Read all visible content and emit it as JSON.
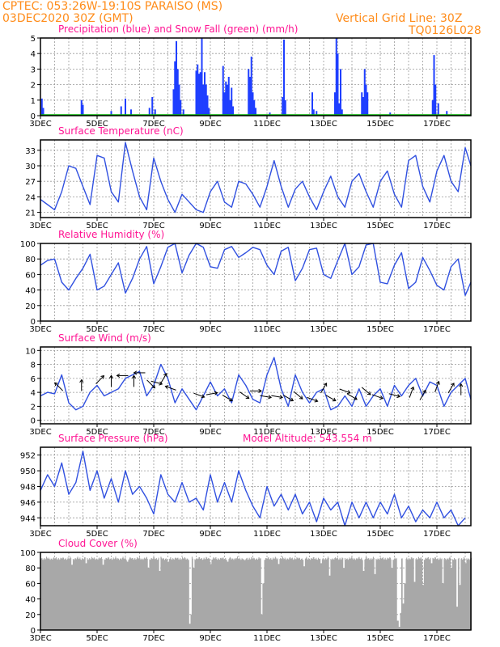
{
  "header": {
    "station_line": "CPTEC:   053:26W-19:10S   PARAISO (MS)",
    "date_line": "03DEC2020 30Z (GMT)",
    "grid_note": "Vertical Grid Line: 30Z",
    "model_code": "TQ0126L028"
  },
  "colors": {
    "header": "#ff8c1a",
    "panel_title": "#ff1493",
    "precip": "#1f3fff",
    "snow": "#00b000",
    "line": "#3050e0",
    "wind_arrow": "#000000",
    "cloud": "#a8a8a8",
    "grid": "#9a9a9a"
  },
  "x_ticks": [
    "3DEC",
    "5DEC",
    "7DEC",
    "9DEC",
    "11DEC",
    "13DEC",
    "15DEC",
    "17DEC"
  ],
  "chart_data": [
    {
      "type": "bar",
      "name": "precipitation",
      "title": "Precipitation (blue) and Snow Fall (green) (mm/h)",
      "ylim": [
        0,
        5
      ],
      "yticks": [
        "0",
        "1",
        "2",
        "3",
        "4",
        "5"
      ],
      "day_range": [
        3,
        18.2
      ],
      "series": [
        {
          "name": "Precipitation",
          "points": [
            [
              3.05,
              1.1
            ],
            [
              3.1,
              0.5
            ],
            [
              4.45,
              1.0
            ],
            [
              4.5,
              0.7
            ],
            [
              5.5,
              0.3
            ],
            [
              5.85,
              0.6
            ],
            [
              6.0,
              1.1
            ],
            [
              6.2,
              0.4
            ],
            [
              6.85,
              0.5
            ],
            [
              6.95,
              1.2
            ],
            [
              7.05,
              0.4
            ],
            [
              7.7,
              1.7
            ],
            [
              7.75,
              3.5
            ],
            [
              7.8,
              4.8
            ],
            [
              7.85,
              3.0
            ],
            [
              7.9,
              2.0
            ],
            [
              7.95,
              1.0
            ],
            [
              8.05,
              0.4
            ],
            [
              8.5,
              2.9
            ],
            [
              8.55,
              3.3
            ],
            [
              8.6,
              2.7
            ],
            [
              8.65,
              2.8
            ],
            [
              8.7,
              5.0
            ],
            [
              8.75,
              2.0
            ],
            [
              8.8,
              2.8
            ],
            [
              8.85,
              2.0
            ],
            [
              8.9,
              1.3
            ],
            [
              8.95,
              0.5
            ],
            [
              9.45,
              3.2
            ],
            [
              9.5,
              1.5
            ],
            [
              9.55,
              2.2
            ],
            [
              9.6,
              2.0
            ],
            [
              9.65,
              2.5
            ],
            [
              9.7,
              1.0
            ],
            [
              9.75,
              1.8
            ],
            [
              9.8,
              0.6
            ],
            [
              10.35,
              3.0
            ],
            [
              10.4,
              2.5
            ],
            [
              10.45,
              3.8
            ],
            [
              10.5,
              1.5
            ],
            [
              10.55,
              1.0
            ],
            [
              10.6,
              0.5
            ],
            [
              11.1,
              0.2
            ],
            [
              11.55,
              1.2
            ],
            [
              11.6,
              4.9
            ],
            [
              11.65,
              1.0
            ],
            [
              12.6,
              1.5
            ],
            [
              12.65,
              0.4
            ],
            [
              12.75,
              0.3
            ],
            [
              13.4,
              1.5
            ],
            [
              13.45,
              5.0
            ],
            [
              13.5,
              4.0
            ],
            [
              13.55,
              0.8
            ],
            [
              13.6,
              3.0
            ],
            [
              13.65,
              0.4
            ],
            [
              14.35,
              1.5
            ],
            [
              14.4,
              1.2
            ],
            [
              14.45,
              3.0
            ],
            [
              14.5,
              2.0
            ],
            [
              14.55,
              1.5
            ],
            [
              15.35,
              0.2
            ],
            [
              16.85,
              1.0
            ],
            [
              16.9,
              3.9
            ],
            [
              16.95,
              2.0
            ],
            [
              17.05,
              0.8
            ],
            [
              17.35,
              0.3
            ]
          ]
        },
        {
          "name": "Snow Fall",
          "values": []
        }
      ]
    },
    {
      "type": "line",
      "name": "temperature",
      "title": "Surface Temperature (nC)",
      "ylim": [
        20,
        35
      ],
      "yticks": [
        "21",
        "24",
        "27",
        "30",
        "33"
      ],
      "x_day": [
        3.0,
        3.25,
        3.5,
        3.75,
        4.0,
        4.25,
        4.5,
        4.75,
        5.0,
        5.25,
        5.5,
        5.75,
        6.0,
        6.25,
        6.5,
        6.75,
        7.0,
        7.25,
        7.5,
        7.75,
        8.0,
        8.25,
        8.5,
        8.75,
        9.0,
        9.25,
        9.5,
        9.75,
        10.0,
        10.25,
        10.5,
        10.75,
        11.0,
        11.25,
        11.5,
        11.75,
        12.0,
        12.25,
        12.5,
        12.75,
        13.0,
        13.25,
        13.5,
        13.75,
        14.0,
        14.25,
        14.5,
        14.75,
        15.0,
        15.25,
        15.5,
        15.75,
        16.0,
        16.25,
        16.5,
        16.75,
        17.0,
        17.25,
        17.5,
        17.75,
        18.0,
        18.2
      ],
      "values": [
        23.5,
        22.5,
        21.5,
        25,
        30,
        29.5,
        26,
        22.5,
        32,
        31.5,
        25,
        23,
        34.5,
        29,
        24,
        21.5,
        31.5,
        27,
        23.5,
        21,
        24.5,
        23,
        21.5,
        21,
        25,
        27,
        23,
        22,
        27,
        26.5,
        24.5,
        22,
        26,
        31,
        26,
        22,
        25.5,
        27,
        24,
        21.5,
        25,
        28,
        24,
        22,
        27,
        28.5,
        25,
        22,
        27,
        29,
        24.5,
        22,
        31,
        32,
        26,
        23,
        29,
        32,
        27,
        25,
        33.5,
        30
      ]
    },
    {
      "type": "line",
      "name": "humidity",
      "title": "Relative Humidity (%)",
      "ylim": [
        0,
        100
      ],
      "yticks": [
        "0",
        "20",
        "40",
        "60",
        "80",
        "100"
      ],
      "x_day": [
        3.0,
        3.25,
        3.5,
        3.75,
        4.0,
        4.25,
        4.5,
        4.75,
        5.0,
        5.25,
        5.5,
        5.75,
        6.0,
        6.25,
        6.5,
        6.75,
        7.0,
        7.25,
        7.5,
        7.75,
        8.0,
        8.25,
        8.5,
        8.75,
        9.0,
        9.25,
        9.5,
        9.75,
        10.0,
        10.25,
        10.5,
        10.75,
        11.0,
        11.25,
        11.5,
        11.75,
        12.0,
        12.25,
        12.5,
        12.75,
        13.0,
        13.25,
        13.5,
        13.75,
        14.0,
        14.25,
        14.5,
        14.75,
        15.0,
        15.25,
        15.5,
        15.75,
        16.0,
        16.25,
        16.5,
        16.75,
        17.0,
        17.25,
        17.5,
        17.75,
        18.0,
        18.2
      ],
      "values": [
        72,
        78,
        80,
        50,
        40,
        55,
        68,
        86,
        40,
        45,
        60,
        75,
        36,
        55,
        80,
        96,
        48,
        70,
        95,
        100,
        62,
        85,
        100,
        95,
        70,
        68,
        92,
        96,
        82,
        88,
        95,
        92,
        72,
        60,
        90,
        95,
        52,
        68,
        92,
        94,
        60,
        55,
        78,
        100,
        60,
        70,
        98,
        100,
        50,
        48,
        72,
        88,
        42,
        50,
        82,
        65,
        46,
        40,
        70,
        80,
        33,
        50
      ]
    },
    {
      "type": "line",
      "name": "wind",
      "title": "Surface Wind (m/s)",
      "ylim": [
        -0.5,
        10.5
      ],
      "yticks": [
        "0",
        "2",
        "4",
        "6",
        "8",
        "10"
      ],
      "x_day": [
        3.0,
        3.25,
        3.5,
        3.75,
        4.0,
        4.25,
        4.5,
        4.75,
        5.0,
        5.25,
        5.5,
        5.75,
        6.0,
        6.25,
        6.5,
        6.75,
        7.0,
        7.25,
        7.5,
        7.75,
        8.0,
        8.25,
        8.5,
        8.75,
        9.0,
        9.25,
        9.5,
        9.75,
        10.0,
        10.25,
        10.5,
        10.75,
        11.0,
        11.25,
        11.5,
        11.75,
        12.0,
        12.25,
        12.5,
        12.75,
        13.0,
        13.25,
        13.5,
        13.75,
        14.0,
        14.25,
        14.5,
        14.75,
        15.0,
        15.25,
        15.5,
        15.75,
        16.0,
        16.25,
        16.5,
        16.75,
        17.0,
        17.25,
        17.5,
        17.75,
        18.0,
        18.2
      ],
      "values": [
        3.5,
        4.0,
        3.8,
        6.5,
        2.5,
        1.5,
        2.0,
        4.0,
        5.0,
        3.5,
        4.0,
        4.5,
        6.0,
        6.5,
        7.0,
        3.5,
        5.0,
        8.0,
        6.0,
        2.5,
        4.5,
        3.0,
        1.5,
        3.5,
        5.5,
        3.5,
        4.5,
        2.5,
        6.5,
        5.0,
        3.0,
        2.5,
        6.5,
        9.0,
        4.5,
        2.0,
        6.5,
        4.0,
        2.5,
        4.0,
        4.5,
        1.5,
        2.0,
        3.5,
        2.0,
        4.5,
        2.0,
        3.5,
        4.5,
        2.0,
        5.0,
        3.5,
        5.0,
        6.0,
        3.5,
        5.5,
        5.0,
        2.0,
        4.0,
        5.0,
        6.0,
        3.0
      ],
      "arrows": [
        [
          3.65,
          4.8,
          225
        ],
        [
          4.45,
          5.0,
          270
        ],
        [
          5.1,
          5.8,
          315
        ],
        [
          5.5,
          5.6,
          270
        ],
        [
          5.9,
          6.4,
          180
        ],
        [
          6.3,
          5.6,
          270
        ],
        [
          6.5,
          6.8,
          180
        ],
        [
          6.9,
          5.2,
          45
        ],
        [
          7.1,
          5.4,
          15
        ],
        [
          7.35,
          6.0,
          300
        ],
        [
          7.6,
          4.6,
          200
        ],
        [
          8.6,
          3.6,
          20
        ],
        [
          9.05,
          3.8,
          350
        ],
        [
          9.6,
          3.2,
          30
        ],
        [
          10.2,
          3.6,
          35
        ],
        [
          10.6,
          4.2,
          0
        ],
        [
          10.95,
          3.4,
          10
        ],
        [
          11.35,
          3.4,
          10
        ],
        [
          11.75,
          3.2,
          30
        ],
        [
          12.1,
          3.6,
          40
        ],
        [
          12.6,
          3.0,
          20
        ],
        [
          13.0,
          4.6,
          300
        ],
        [
          13.25,
          3.2,
          30
        ],
        [
          13.75,
          4.2,
          20
        ],
        [
          14.0,
          3.4,
          30
        ],
        [
          14.5,
          4.2,
          40
        ],
        [
          14.9,
          3.4,
          20
        ],
        [
          15.5,
          3.6,
          15
        ],
        [
          16.1,
          4.0,
          290
        ],
        [
          16.5,
          3.6,
          300
        ],
        [
          17.0,
          4.8,
          290
        ],
        [
          17.5,
          4.6,
          300
        ],
        [
          17.85,
          4.4,
          270
        ]
      ]
    },
    {
      "type": "line",
      "name": "pressure",
      "title": "Surface Pressure (hPa)",
      "annotation": "Model Altitude: 543.554 m",
      "ylim": [
        943,
        953
      ],
      "yticks": [
        "944",
        "946",
        "948",
        "950",
        "952"
      ],
      "x_day": [
        3.0,
        3.25,
        3.5,
        3.75,
        4.0,
        4.25,
        4.5,
        4.75,
        5.0,
        5.25,
        5.5,
        5.75,
        6.0,
        6.25,
        6.5,
        6.75,
        7.0,
        7.25,
        7.5,
        7.75,
        8.0,
        8.25,
        8.5,
        8.75,
        9.0,
        9.25,
        9.5,
        9.75,
        10.0,
        10.25,
        10.5,
        10.75,
        11.0,
        11.25,
        11.5,
        11.75,
        12.0,
        12.25,
        12.5,
        12.75,
        13.0,
        13.25,
        13.5,
        13.75,
        14.0,
        14.25,
        14.5,
        14.75,
        15.0,
        15.25,
        15.5,
        15.75,
        16.0,
        16.25,
        16.5,
        16.75,
        17.0,
        17.25,
        17.5,
        17.75,
        18.0
      ],
      "values": [
        947.5,
        949.5,
        948,
        951,
        947,
        948.5,
        952.5,
        947.5,
        950,
        946.5,
        949,
        946,
        950,
        947,
        948,
        946.5,
        944.5,
        949.5,
        947,
        946,
        948.5,
        946,
        946.5,
        945,
        949.5,
        946,
        948.5,
        946,
        950,
        947.5,
        945.5,
        944,
        948,
        945.5,
        947,
        945,
        947,
        944.5,
        946,
        943.5,
        946.5,
        945,
        946,
        943,
        946,
        944,
        946,
        944,
        946,
        944.5,
        947,
        944,
        945.5,
        943.5,
        945,
        944,
        946,
        944,
        945,
        942.5,
        944
      ]
    },
    {
      "type": "bar",
      "name": "cloud",
      "title": "Cloud Cover (%)",
      "ylim": [
        0,
        100
      ],
      "yticks": [
        "0",
        "20",
        "40",
        "60",
        "80",
        "100"
      ],
      "base": 95,
      "dips": [
        [
          4.1,
          84
        ],
        [
          4.6,
          86
        ],
        [
          5.2,
          84
        ],
        [
          6.05,
          88
        ],
        [
          6.8,
          80
        ],
        [
          7.2,
          76
        ],
        [
          7.5,
          88
        ],
        [
          8.25,
          8
        ],
        [
          8.3,
          20
        ],
        [
          8.4,
          80
        ],
        [
          9.0,
          85
        ],
        [
          9.6,
          88
        ],
        [
          10.2,
          90
        ],
        [
          10.8,
          20
        ],
        [
          10.85,
          60
        ],
        [
          11.4,
          85
        ],
        [
          12.3,
          82
        ],
        [
          12.9,
          86
        ],
        [
          13.2,
          70
        ],
        [
          13.7,
          80
        ],
        [
          14.4,
          76
        ],
        [
          14.8,
          72
        ],
        [
          15.4,
          80
        ],
        [
          15.6,
          12
        ],
        [
          15.65,
          4
        ],
        [
          15.7,
          22
        ],
        [
          15.8,
          34
        ],
        [
          15.85,
          60
        ],
        [
          16.2,
          62
        ],
        [
          16.5,
          58
        ],
        [
          16.8,
          86
        ],
        [
          17.2,
          60
        ],
        [
          17.5,
          80
        ],
        [
          17.7,
          30
        ],
        [
          17.8,
          58
        ],
        [
          18.0,
          86
        ]
      ]
    }
  ]
}
